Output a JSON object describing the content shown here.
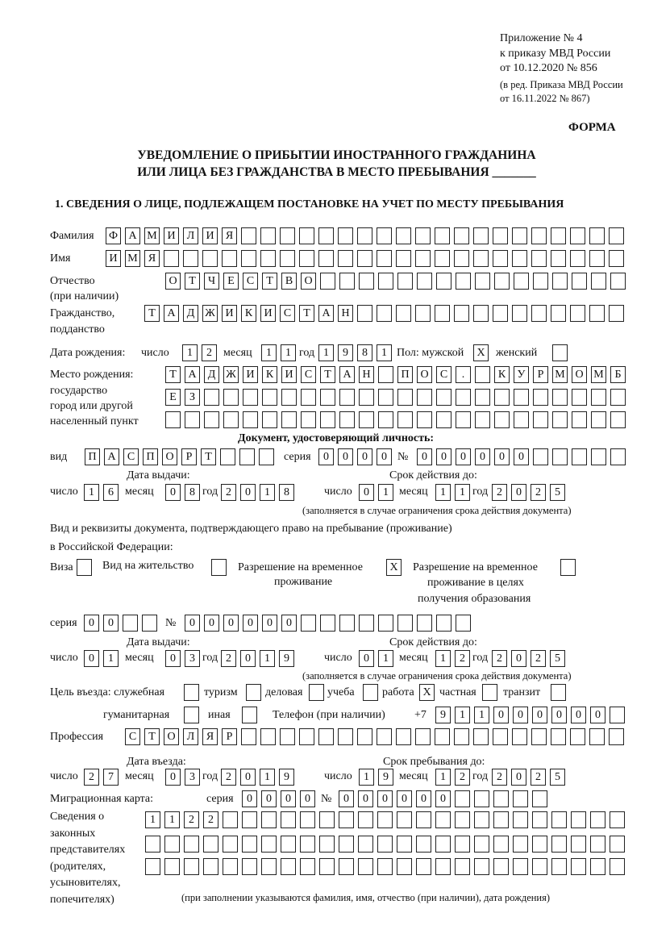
{
  "header": {
    "lines": [
      "Приложение № 4",
      "к приказу МВД России",
      "от 10.12.2020 № 856"
    ],
    "amend": [
      "(в ред. Приказа МВД России",
      "от 16.11.2022 № 867)"
    ],
    "forma": "ФОРМА"
  },
  "title": [
    "УВЕДОМЛЕНИЕ О ПРИБЫТИИ ИНОСТРАННОГО ГРАЖДАНИНА",
    "ИЛИ ЛИЦА БЕЗ ГРАЖДАНСТВА В МЕСТО ПРЕБЫВАНИЯ _______"
  ],
  "section1": "1. СВЕДЕНИЯ О ЛИЦЕ, ПОДЛЕЖАЩЕМ ПОСТАНОВКЕ НА УЧЕТ ПО МЕСТУ ПРЕБЫВАНИЯ",
  "labels": {
    "surname": "Фамилия",
    "name": "Имя",
    "patronymic": [
      "Отчество",
      "(при наличии)"
    ],
    "citizenship": [
      "Гражданство,",
      "подданство"
    ],
    "birth_date": "Дата рождения:",
    "day": "число",
    "month": "месяц",
    "year": "год",
    "sex": "Пол: мужской",
    "female": "женский",
    "birthplace": [
      "Место рождения:",
      "государство",
      "город или другой",
      "населенный пункт"
    ],
    "id_doc": "Документ, удостоверяющий личность:",
    "kind": "вид",
    "series": "серия",
    "number": "№",
    "issue_date": "Дата выдачи:",
    "valid_until": "Срок действия до:",
    "validity_note": "(заполняется в случае ограничения срока действия документа)",
    "stay_doc": [
      "Вид и реквизиты документа, подтверждающего право на пребывание (проживание)",
      "в Российской Федерации:"
    ],
    "visa": "Виза",
    "residence": "Вид на жительство",
    "temp_residence": [
      "Разрешение на временное",
      "проживание"
    ],
    "temp_edu": [
      "Разрешение на временное",
      "проживание в целях",
      "получения образования"
    ],
    "purpose": "Цель въезда: служебная",
    "tourism": "туризм",
    "business": "деловая",
    "study": "учеба",
    "work": "работа",
    "private": "частная",
    "transit": "транзит",
    "humanitarian": "гуманитарная",
    "other": "иная",
    "phone": "Телефон (при наличии)",
    "phone_prefix": "+7",
    "profession": "Профессия",
    "entry_date": "Дата въезда:",
    "stay_until": "Срок пребывания до:",
    "migration_card": "Миграционная карта:",
    "representatives": [
      "Сведения о",
      "законных",
      "представителях",
      "(родителях,",
      "усыновителях,",
      "попечителях)"
    ],
    "rep_note": "(при заполнении указываются фамилия, имя, отчество (при наличии), дата рождения)"
  },
  "values": {
    "surname": "ФАМИЛИЯ",
    "name": "ИМЯ",
    "patronymic": "ОТЧЕСТВО",
    "citizenship": "ТАДЖИКИСТАН",
    "birth_day": "12",
    "birth_month": "11",
    "birth_year": "1981",
    "male": "X",
    "female": "",
    "birthplace1": "ТАДЖИКИСТАН ПОС. КУРМОМБ",
    "birthplace2": "ЕЗ",
    "birthplace3": "",
    "doc_kind": "ПАСПОРТ",
    "doc_series": "0000",
    "doc_number": "000000",
    "doc_issue_day": "16",
    "doc_issue_month": "08",
    "doc_issue_year": "2018",
    "doc_valid_day": "01",
    "doc_valid_month": "11",
    "doc_valid_year": "2025",
    "visa": "",
    "residence": "",
    "temp_residence": "X",
    "temp_edu": "",
    "stay_series": "00",
    "stay_number": "000000",
    "stay_issue_day": "01",
    "stay_issue_month": "03",
    "stay_issue_year": "2019",
    "stay_valid_day": "01",
    "stay_valid_month": "12",
    "stay_valid_year": "2025",
    "p_service": "",
    "p_tourism": "",
    "p_business": "",
    "p_study": "",
    "p_work": "X",
    "p_private": "",
    "p_transit": "",
    "p_humanitarian": "",
    "p_other": "",
    "phone": "911000000",
    "profession": "СТОЛЯР",
    "entry_day": "27",
    "entry_month": "03",
    "entry_year": "2019",
    "stay_until_day": "19",
    "stay_until_month": "12",
    "stay_until_year": "2025",
    "mc_series": "0000",
    "mc_number": "000000",
    "rep1": "1122",
    "rep2": "",
    "rep3": ""
  }
}
